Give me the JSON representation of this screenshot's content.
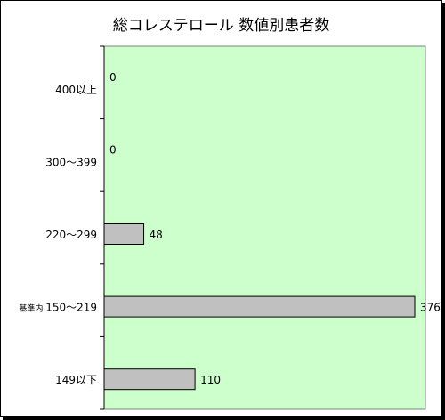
{
  "chart_data": {
    "type": "bar",
    "orientation": "horizontal",
    "title": "総コレステロール 数値別患者数",
    "categories": [
      "400以上",
      "300〜399",
      "220〜299",
      "基準内 150〜219",
      "149以下"
    ],
    "category_prefix_small": [
      "",
      "",
      "",
      "基準内",
      ""
    ],
    "category_main": [
      "400以上",
      "300〜399",
      "220〜299",
      "150〜219",
      "149以下"
    ],
    "values": [
      0,
      0,
      48,
      376,
      110
    ],
    "xlim": [
      0,
      376
    ],
    "grid": false,
    "colors": {
      "plot_background": "#ccffcc",
      "bar_fill": "#c0c0c0",
      "bar_stroke": "#000000"
    }
  }
}
